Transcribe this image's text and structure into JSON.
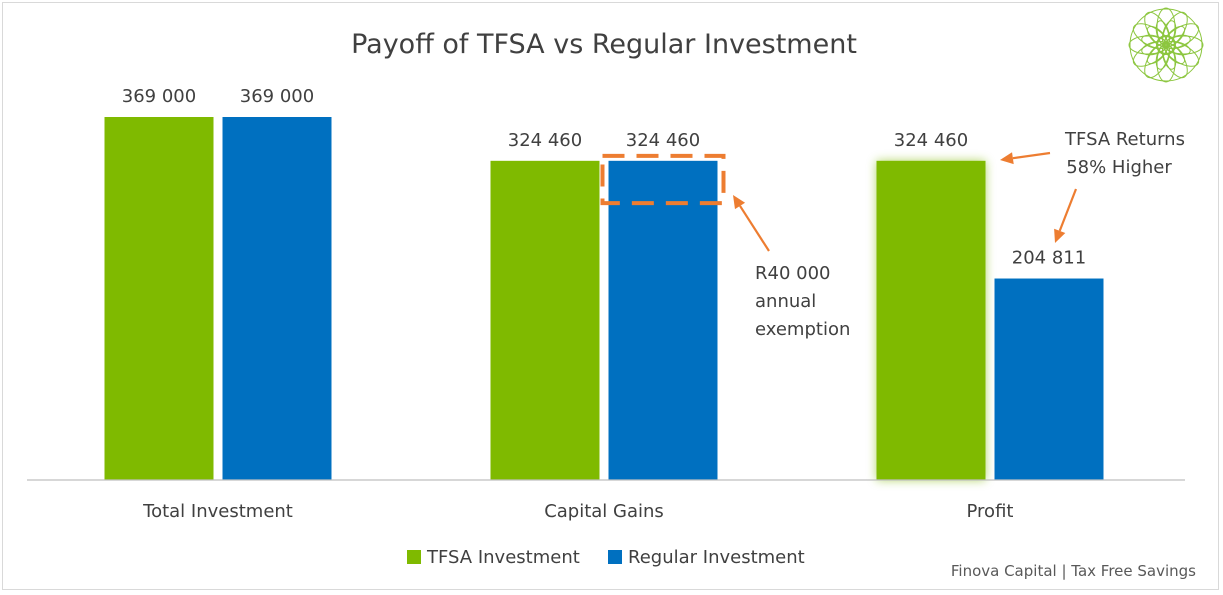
{
  "chart_data": {
    "type": "bar",
    "title": "Payoff of TFSA vs Regular Investment",
    "categories": [
      "Total Investment",
      "Capital Gains",
      "Profit"
    ],
    "series": [
      {
        "name": "TFSA Investment",
        "color": "#7fba00",
        "values": [
          369000,
          324460,
          324460
        ],
        "labels": [
          "369 000",
          "324 460",
          "324 460"
        ]
      },
      {
        "name": "Regular Investment",
        "color": "#0070c0",
        "values": [
          369000,
          324460,
          204811
        ],
        "labels": [
          "369 000",
          "324 460",
          "204 811"
        ]
      }
    ],
    "ylim": [
      0,
      369000
    ],
    "grid": false,
    "legend": "bottom",
    "annotations": {
      "exemption_lines": [
        "R40 000",
        "annual",
        "exemption"
      ],
      "returns_lines": [
        "TFSA Returns",
        "58% Higher"
      ],
      "exemption_value": 40000,
      "annotation_color": "#ed7d31"
    }
  },
  "footer": {
    "text": "Finova Capital | Tax Free Savings"
  },
  "logo": {
    "icon": "mandala-logo-icon",
    "color": "#8cc63f"
  }
}
